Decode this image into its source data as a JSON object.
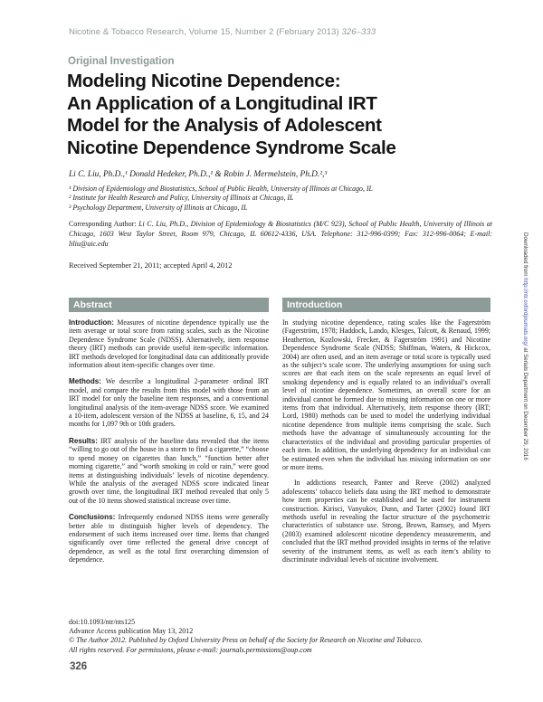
{
  "page_header": {
    "journal_line": "Nicotine & Tobacco Research, Volume 15, Number 2 (February 2013) ",
    "page_range": "326–333"
  },
  "article": {
    "category": "Original Investigation",
    "title_lines": [
      "Modeling Nicotine Dependence:",
      "An Application of a Longitudinal IRT",
      "Model for the Analysis of Adolescent",
      "Nicotine Dependence Syndrome Scale"
    ],
    "authors": "Li C. Liu, Ph.D.,¹ Donald Hedeker, Ph.D.,¹ & Robin J. Mermelstein, Ph.D.²,³",
    "affiliations": [
      "¹ Division of Epidemiology and Biostatistics, School of Public Health, University of Illinois at Chicago, IL",
      "² Institute for Health Research and Policy, University of Illinois at Chicago, IL",
      "³ Psychology Department, University of Illinois at Chicago, IL"
    ],
    "corresponding_label": "Corresponding Author:",
    "corresponding_text": " Li C. Liu, Ph.D., Division of Epidemiology & Biostatistics (M/C 923), School of Public Health, University of Illinois at Chicago, 1603 West Taylor Street, Room 979, Chicago, IL 60612-4336, USA. Telephone: 312-996-0399; Fax: 312-996-0064; E-mail: liliu@uic.edu",
    "received": "Received September 21, 2011; accepted April 4, 2012"
  },
  "abstract": {
    "heading": "Abstract",
    "sections": [
      {
        "label": "Introduction:",
        "text": "Measures of nicotine dependence typically use the item average or total score from rating scales, such as the Nicotine Dependence Syndrome Scale (NDSS). Alternatively, item response theory (IRT) methods can provide useful item-specific information. IRT methods developed for longitudinal data can additionally provide information about item-specific changes over time."
      },
      {
        "label": "Methods:",
        "text": "We describe a longitudinal 2-parameter ordinal IRT model, and compare the results from this model with those from an IRT model for only the baseline item responses, and a conventional longitudinal analysis of the item-average NDSS score. We examined a 10-item, adolescent version of the NDSS at baseline, 6, 15, and 24 months for 1,097 9th or 10th graders."
      },
      {
        "label": "Results:",
        "text": "IRT analysis of the baseline data revealed that the items “willing to go out of the house in a storm to find a cigarette,” “choose to spend money on cigarettes than lunch,” “function better after morning cigarette,” and “worth smoking in cold or rain,” were good items at distinguishing individuals’ levels of nicotine dependency. While the analysis of the averaged NDSS score indicated linear growth over time, the longitudinal IRT method revealed that only 5 out of the 10 items showed statistical increase over time."
      },
      {
        "label": "Conclusions:",
        "text": "Infrequently endorsed NDSS items were generally better able to distinguish higher levels of dependency. The endorsement of such items increased over time. Items that changed significantly over time reflected the general drive concept of dependence, as well as the total first overarching dimension of dependence."
      }
    ]
  },
  "introduction": {
    "heading": "Introduction",
    "paragraphs": [
      "In studying nicotine dependence, rating scales like the Fagerström (Fagerström, 1978; Haddock, Lando, Klesges, Talcott, & Renaud, 1999; Heatherton, Kozlowski, Frecker, & Fagerström 1991) and Nicotine Dependence Syndrome Scale (NDSS; Shiffman, Waters, & Hickcox, 2004) are often used, and an item average or total score is typically used as the subject’s scale score. The underlying assumptions for using such scores are that each item on the scale represents an equal level of smoking dependency and is equally related to an individual’s overall level of nicotine dependence. Sometimes, an overall score for an individual cannot be formed due to missing information on one or more items from that individual. Alternatively, item response theory (IRT; Lord, 1980) methods can be used to model the underlying individual nicotine dependence from multiple items comprising the scale. Such methods have the advantage of simultaneously accounting for the characteristics of the individual and providing particular properties of each item. In addition, the underlying dependency for an individual can be estimated even when the individual has missing information on one or more items.",
      "In addictions research, Panter and Reeve (2002) analyzed adolescents’ tobacco beliefs data using the IRT method to demonstrate how item properties can be established and be used for instrument construction. Kirisci, Vanyukov, Dunn, and Tarter (2002) found IRT methods useful in revealing the factor structure of the psychometric characteristics of substance use. Strong, Brown, Ramsey, and Myers (2003) examined adolescent nicotine dependency measurements, and concluded that the IRT method provided insights in terms of the relative severity of the instrument items, as well as each item’s ability to discriminate individual levels of nicotine involvement."
    ]
  },
  "footnote": {
    "doi": "doi:10.1093/ntr/nts125",
    "advance_access": "Advance Access publication May 13, 2012",
    "copyright": "© The Author 2012. Published by Oxford University Press on behalf of the Society for Research on Nicotine and Tobacco.",
    "rights": "All rights reserved. For permissions, please e-mail: journals.permissions@oup.com"
  },
  "page_number": "326",
  "sidebar": {
    "prefix": "Downloaded from ",
    "url": "http://ntr.oxfordjournals.org/",
    "suffix": " at Serials Department on December 29, 2016"
  },
  "colors": {
    "accent": "#8d9c98",
    "link": "#4a55b5"
  }
}
